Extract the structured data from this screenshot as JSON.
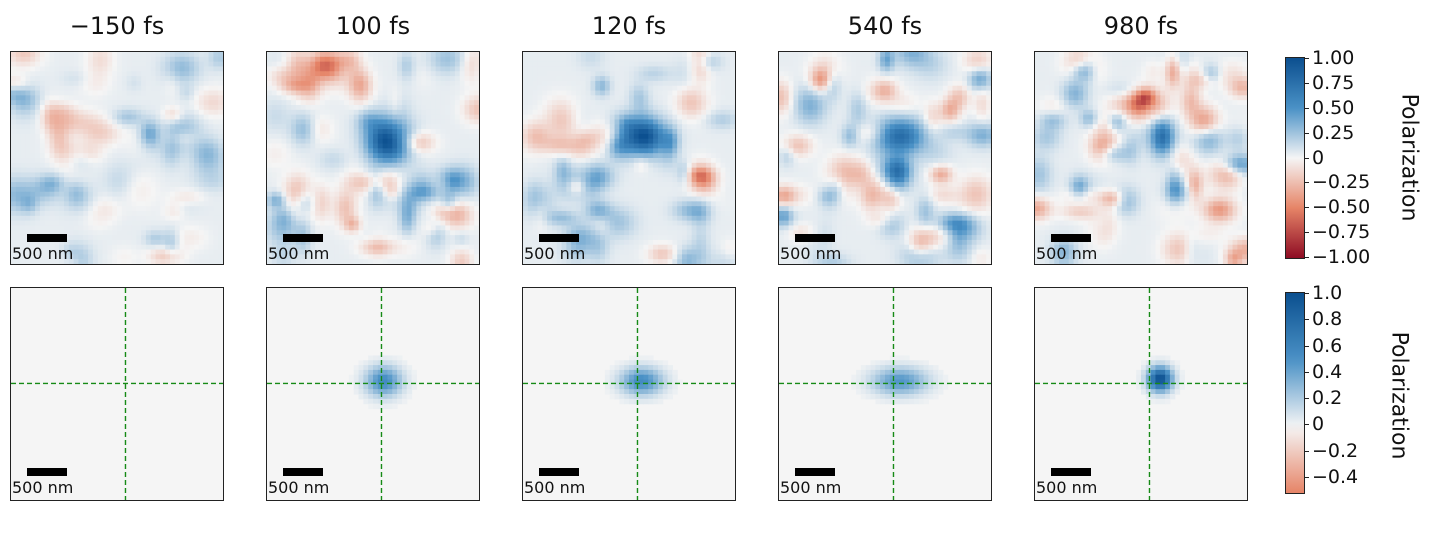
{
  "colors": {
    "blue_dark": "#0b4f8f",
    "blue_mid": "#4a91c6",
    "neutral": "#f5f5f5",
    "red_mid": "#e68467",
    "red_dark": "#8e0c24",
    "crosshair": "#168a16",
    "scalebar": "#000000"
  },
  "chart_data": [
    {
      "type": "heatmap",
      "row": "measured",
      "panels": [
        {
          "time_label": "−150 fs",
          "scalebar_label": "500 nm",
          "blob": null,
          "noise_amplitude": 0.28,
          "noise_seed": 11
        },
        {
          "time_label": "100 fs",
          "scalebar_label": "500 nm",
          "blob": {
            "cx": 0.57,
            "cy": 0.42,
            "sx": 0.07,
            "sy": 0.07,
            "amp": 1.0
          },
          "noise_amplitude": 0.34,
          "noise_seed": 23
        },
        {
          "time_label": "120 fs",
          "scalebar_label": "500 nm",
          "blob": {
            "cx": 0.57,
            "cy": 0.4,
            "sx": 0.07,
            "sy": 0.06,
            "amp": 0.95
          },
          "noise_amplitude": 0.3,
          "noise_seed": 37
        },
        {
          "time_label": "540 fs",
          "scalebar_label": "500 nm",
          "blob": {
            "cx": 0.57,
            "cy": 0.4,
            "sx": 0.08,
            "sy": 0.06,
            "amp": 0.75
          },
          "noise_amplitude": 0.38,
          "noise_seed": 41
        },
        {
          "time_label": "980 fs",
          "scalebar_label": "500 nm",
          "blob": {
            "cx": 0.6,
            "cy": 0.4,
            "sx": 0.04,
            "sy": 0.06,
            "amp": 0.7
          },
          "noise_amplitude": 0.42,
          "noise_seed": 53
        }
      ],
      "colorbar": {
        "label": "Polarization",
        "range": [
          -1.0,
          1.0
        ],
        "ticks": [
          "1.00",
          "0.75",
          "0.50",
          "0.25",
          "0",
          "−0.25",
          "−0.50",
          "−0.75",
          "−1.00"
        ]
      }
    },
    {
      "type": "heatmap",
      "row": "model",
      "panels": [
        {
          "scalebar_label": "500 nm",
          "blob": null
        },
        {
          "scalebar_label": "500 nm",
          "blob": {
            "cx": 0.55,
            "cy": 0.44,
            "sx": 0.06,
            "sy": 0.05,
            "amp": 0.55
          }
        },
        {
          "scalebar_label": "500 nm",
          "blob": {
            "cx": 0.56,
            "cy": 0.44,
            "sx": 0.07,
            "sy": 0.045,
            "amp": 0.55
          }
        },
        {
          "scalebar_label": "500 nm",
          "blob": {
            "cx": 0.57,
            "cy": 0.44,
            "sx": 0.09,
            "sy": 0.045,
            "amp": 0.48
          }
        },
        {
          "scalebar_label": "500 nm",
          "blob": {
            "cx": 0.59,
            "cy": 0.43,
            "sx": 0.04,
            "sy": 0.04,
            "amp": 1.0
          }
        }
      ],
      "crosshair": {
        "x": 0.54,
        "y": 0.45
      },
      "colorbar": {
        "label": "Polarization",
        "range": [
          -0.5,
          1.0
        ],
        "ticks": [
          "1.0",
          "0.8",
          "0.6",
          "0.4",
          "0.2",
          "0",
          "−0.2",
          "−0.4"
        ]
      }
    }
  ]
}
